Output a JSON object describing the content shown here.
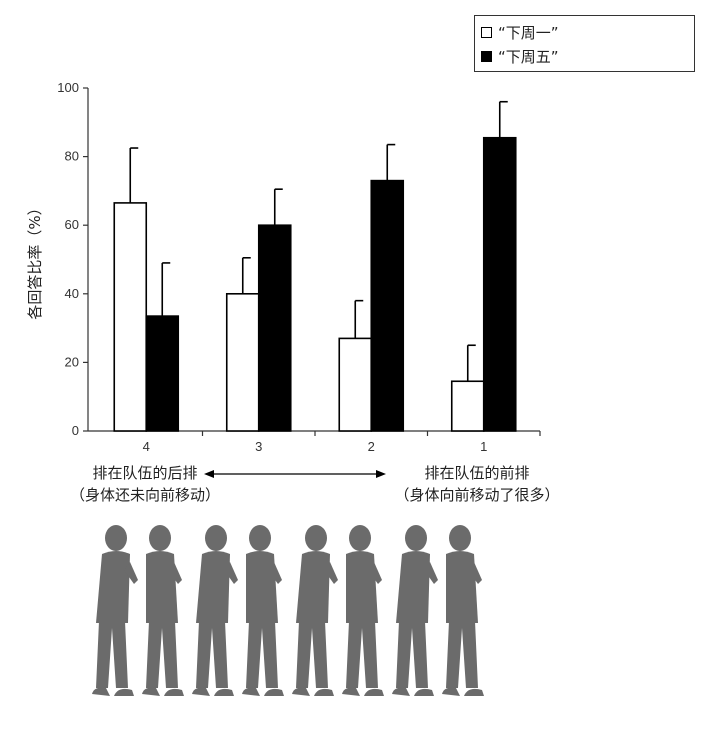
{
  "chart_data": {
    "type": "bar",
    "categories": [
      "4",
      "3",
      "2",
      "1"
    ],
    "series": [
      {
        "name": "“下周一”",
        "color": "#ffffff",
        "values": [
          66.5,
          40,
          27,
          14.5
        ],
        "errors": [
          16,
          10.5,
          11,
          10.5
        ]
      },
      {
        "name": "“下周五”",
        "color": "#000000",
        "values": [
          33.5,
          60,
          73,
          85.5
        ],
        "errors": [
          15.5,
          10.5,
          10.5,
          10.5
        ]
      }
    ],
    "ylabel": "各回答比率（%）",
    "yticks": [
      0,
      20,
      40,
      60,
      80,
      100
    ],
    "ylim": [
      0,
      100
    ],
    "grid": false,
    "legend": "top-right"
  },
  "captions": {
    "left_line1": "排在队伍的后排",
    "left_line2": "（身体还未向前移动）",
    "right_line1": "排在队伍的前排",
    "right_line2": "（身体向前移动了很多）"
  },
  "figure": {
    "people_count": 8,
    "people_color": "#6b6b6b"
  }
}
